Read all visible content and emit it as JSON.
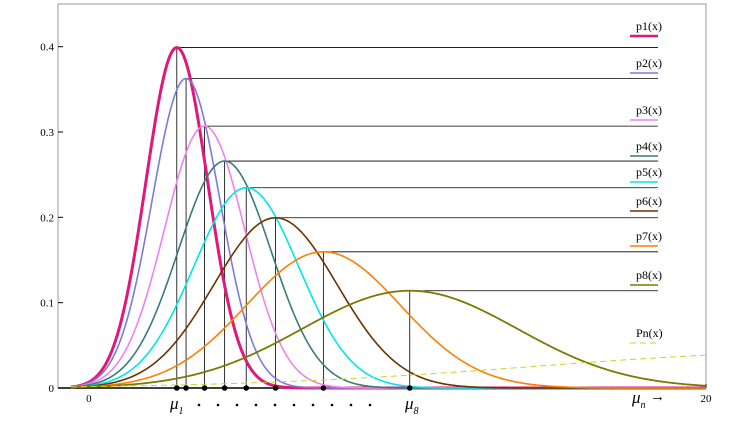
{
  "chart_data": {
    "type": "line",
    "x_range": [
      -1,
      20
    ],
    "y_range": [
      0,
      0.45
    ],
    "y_ticks": [
      {
        "value": 0,
        "label": "0"
      },
      {
        "value": 0.1,
        "label": "0.1"
      },
      {
        "value": 0.2,
        "label": "0.2"
      },
      {
        "value": 0.3,
        "label": "0.3"
      },
      {
        "value": 0.4,
        "label": "0.4"
      }
    ],
    "x_ticks": [
      {
        "value": 0,
        "label": "0"
      },
      {
        "value": 20,
        "label": "20"
      }
    ],
    "series": [
      {
        "name": "p1(x)",
        "color": "#e0187a",
        "width": 3,
        "dashed": false,
        "mu": 2.85,
        "sigma": 1.0
      },
      {
        "name": "p2(x)",
        "color": "#7b7bd8",
        "width": 1.6,
        "dashed": false,
        "mu": 3.15,
        "sigma": 1.1
      },
      {
        "name": "p3(x)",
        "color": "#ee82ee",
        "width": 1.6,
        "dashed": false,
        "mu": 3.75,
        "sigma": 1.3
      },
      {
        "name": "p4(x)",
        "color": "#3a7a7a",
        "width": 1.6,
        "dashed": false,
        "mu": 4.4,
        "sigma": 1.5
      },
      {
        "name": "p5(x)",
        "color": "#00e5e5",
        "width": 1.6,
        "dashed": false,
        "mu": 5.1,
        "sigma": 1.7
      },
      {
        "name": "p6(x)",
        "color": "#6b3200",
        "width": 1.6,
        "dashed": false,
        "mu": 6.05,
        "sigma": 2.0
      },
      {
        "name": "p7(x)",
        "color": "#ff7f00",
        "width": 1.6,
        "dashed": false,
        "mu": 7.6,
        "sigma": 2.5
      },
      {
        "name": "p8(x)",
        "color": "#7a7a00",
        "width": 1.8,
        "dashed": false,
        "mu": 10.4,
        "sigma": 3.5
      },
      {
        "name": "Pn(x)",
        "color": "#c8d428",
        "width": 1,
        "dashed": true,
        "mu": 24,
        "sigma": 9.5
      }
    ],
    "annotations": {
      "mu_first": {
        "symbol": "μ",
        "sub": "1"
      },
      "mu_last": {
        "symbol": "μ",
        "sub": "8"
      },
      "mu_n": {
        "symbol": "μ",
        "sub": "n",
        "arrow": "→"
      }
    }
  }
}
